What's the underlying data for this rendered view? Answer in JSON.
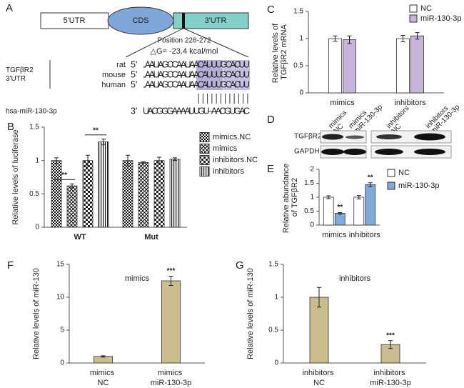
{
  "diagram": {
    "label": "A",
    "regions": [
      "5'UTR",
      "CDS",
      "3'UTR"
    ],
    "position": "Position 226-272",
    "delta_g": "△G= -23.4 kcal/mol",
    "gene": "TGFβR2 3'UTR",
    "species": [
      {
        "name": "rat",
        "end": "5'",
        "sequence": "...AAUAGCCAAUAACAUUUGCACUU"
      },
      {
        "name": "mouse",
        "end": "5'",
        "sequence": "...AAUAGCCAAUAACAUUUGCACUU"
      },
      {
        "name": "human",
        "end": "5'",
        "sequence": "...AAUAGCCAAUAACAUUUGCACUU"
      }
    ],
    "mirna": {
      "name": "hsa-miR-130-3p",
      "end": "3'",
      "sequence": "UACGGGAAAAUUGU–AACGUGAC"
    }
  },
  "blot": {
    "label": "D",
    "lanes": [
      "mimics NC",
      "mimics miR-130-3p",
      "inhibitors NC",
      "inhibitors miR-130-3p"
    ],
    "proteins": [
      "TGFβR2",
      "GAPDH"
    ]
  },
  "chart_data": [
    {
      "type": "bar",
      "panel": "B",
      "ylabel": "Relative levels of luciferase",
      "categories": [
        "WT",
        "Mut"
      ],
      "ylim": [
        0,
        1.5
      ],
      "yticks": [
        0,
        0.5,
        1,
        1.5
      ],
      "brackets": true,
      "series": [
        {
          "name": "mimics.NC",
          "pattern": "dense-checker",
          "values": [
            1.0,
            1.0
          ],
          "errors": [
            0.04,
            0.08
          ]
        },
        {
          "name": "mimics",
          "pattern": "crosshatch",
          "values": [
            0.62,
            0.97
          ],
          "errors": [
            0.03,
            0.01
          ],
          "significance": [
            "**",
            null
          ]
        },
        {
          "name": "inhibitors.NC",
          "pattern": "checker",
          "values": [
            1.0,
            1.0
          ],
          "errors": [
            0.08,
            0.05
          ]
        },
        {
          "name": "inhibitors",
          "pattern": "vertical-lines",
          "values": [
            1.28,
            1.02
          ],
          "errors": [
            0.04,
            0.02
          ],
          "significance": [
            "**",
            null
          ]
        }
      ]
    },
    {
      "type": "bar",
      "panel": "C",
      "ylabel": "Relative levels of TGFβR2 mRNA",
      "categories": [
        "mimics",
        "inhibitors"
      ],
      "ylim": [
        0,
        1.5
      ],
      "yticks": [
        0,
        0.5,
        1,
        1.5
      ],
      "series": [
        {
          "name": "NC",
          "color": "#ffffff",
          "values": [
            1.0,
            1.0
          ],
          "errors": [
            0.05,
            0.06
          ]
        },
        {
          "name": "miR-130-3p",
          "color": "#c8b4d8",
          "values": [
            0.98,
            1.05
          ],
          "errors": [
            0.07,
            0.06
          ]
        }
      ]
    },
    {
      "type": "bar",
      "panel": "E",
      "ylabel": "Relative abundance of TGFβR2",
      "categories": [
        "mimics",
        "inhibitors"
      ],
      "ylim": [
        0,
        2
      ],
      "yticks": [
        0,
        0.5,
        1,
        1.5,
        2
      ],
      "series": [
        {
          "name": "NC",
          "color": "#ffffff",
          "values": [
            1.0,
            1.0
          ],
          "errors": [
            0.05,
            0.06
          ]
        },
        {
          "name": "miR-130-3p",
          "color": "#7eaadc",
          "values": [
            0.42,
            1.45
          ],
          "errors": [
            0.03,
            0.07
          ],
          "significance": [
            "**",
            "**"
          ]
        }
      ]
    },
    {
      "type": "bar",
      "panel": "F",
      "title": "mimics",
      "ylabel": "Relative levels of miR-130",
      "categories": [
        "mimics NC",
        "mimics miR-130-3p"
      ],
      "ylim": [
        0,
        15
      ],
      "yticks": [
        0,
        5,
        10,
        15
      ],
      "series": [
        {
          "color": "#c9bd8e",
          "values": [
            1.0,
            12.5
          ],
          "errors": [
            0.1,
            0.7
          ],
          "significance": [
            null,
            "***"
          ]
        }
      ]
    },
    {
      "type": "bar",
      "panel": "G",
      "title": "inhibitors",
      "ylabel": "Relative levels of miR-130",
      "categories": [
        "inhibitors NC",
        "inhibitors miR-130-3p"
      ],
      "ylim": [
        0,
        1.5
      ],
      "yticks": [
        0,
        0.5,
        1,
        1.5
      ],
      "series": [
        {
          "color": "#c9bd8e",
          "values": [
            1.0,
            0.28
          ],
          "errors": [
            0.15,
            0.06
          ],
          "significance": [
            null,
            "***"
          ]
        }
      ]
    }
  ]
}
